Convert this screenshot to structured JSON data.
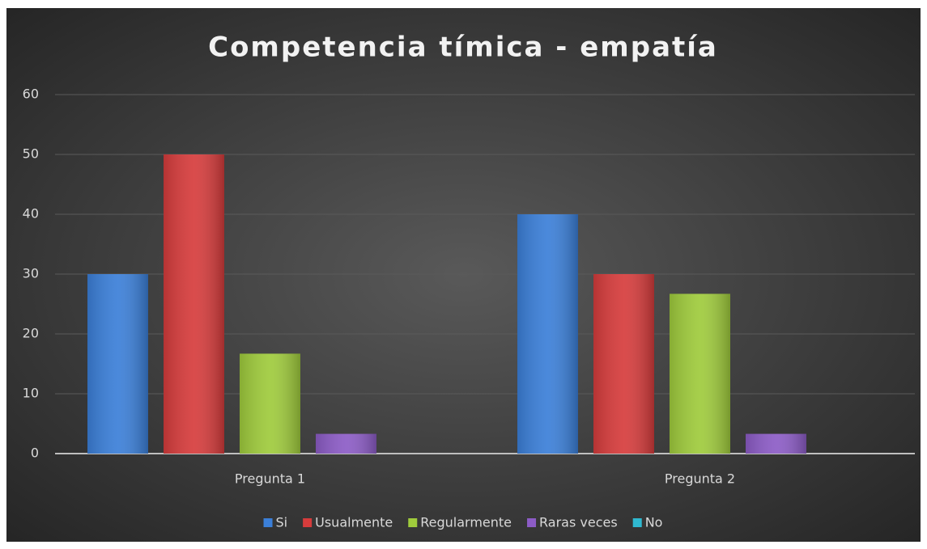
{
  "chart_data": {
    "type": "bar",
    "title": "Competencia tímica - empatía",
    "categories": [
      "Pregunta 1",
      "Pregunta 2"
    ],
    "series": [
      {
        "name": "Si",
        "color": "#3b7fd8",
        "values": [
          30,
          40
        ]
      },
      {
        "name": "Usualmente",
        "color": "#d63c3c",
        "values": [
          50,
          30
        ]
      },
      {
        "name": "Regularmente",
        "color": "#9fcb3c",
        "values": [
          16.7,
          26.7
        ]
      },
      {
        "name": "Raras veces",
        "color": "#8c5cc6",
        "values": [
          3.3,
          3.3
        ]
      },
      {
        "name": "No",
        "color": "#2fb8d0",
        "values": [
          0,
          0
        ]
      }
    ],
    "ylim": [
      0,
      60
    ],
    "yticks": [
      0,
      10,
      20,
      30,
      40,
      50,
      60
    ],
    "grid": true,
    "legend": "bottom"
  }
}
